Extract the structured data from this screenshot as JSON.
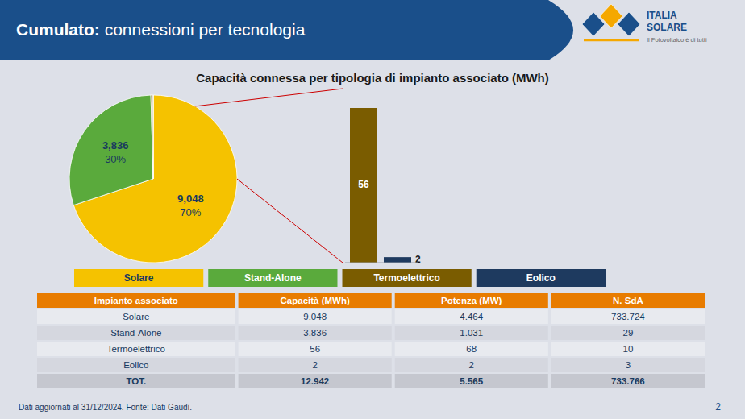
{
  "chart_data": [
    {
      "type": "pie",
      "title": "Capacità connessa per tipologia di impianto associato (MWh)",
      "categories": [
        "Solare",
        "Stand-Alone",
        "Termoelettrico",
        "Eolico"
      ],
      "values": [
        9048,
        3836,
        56,
        2
      ],
      "value_labels": [
        "9,048",
        "3,836",
        null,
        null
      ],
      "percents": [
        70,
        30,
        null,
        null
      ],
      "percent_labels": [
        "70%",
        "30%",
        null,
        null
      ],
      "colors": [
        "#f5c200",
        "#5aaa3c",
        "#7a5c00",
        "#1e3a5f"
      ],
      "legend": "bottom",
      "data_labels": true
    },
    {
      "type": "bar",
      "categories": [
        null,
        null
      ],
      "values": [
        56,
        2
      ],
      "colors": [
        "#7a5c00",
        "#1e3a5f"
      ],
      "ylim": [
        0,
        63
      ],
      "data_labels": true,
      "tick_labels": false,
      "grid": false
    },
    {
      "type": "table",
      "columns": [
        "Impianto associato",
        "Capacità (MWh)",
        "Potenza (MW)",
        "N. SdA"
      ],
      "rows": [
        [
          "Solare",
          "9.048",
          "4.464",
          "733.724"
        ],
        [
          "Stand-Alone",
          "3.836",
          "1.031",
          "29"
        ],
        [
          "Termoelettrico",
          "56",
          "68",
          "10"
        ],
        [
          "Eolico",
          "2",
          "2",
          "3"
        ],
        [
          "TOT.",
          "12.942",
          "5.565",
          "733.766"
        ]
      ]
    }
  ],
  "header_title": "Cumulato:",
  "header_subtitle": " connessioni per tecnologia",
  "logo_texts": [
    "ITALIA",
    "SOLARE",
    "Il Fotovoltaico è di tutti"
  ],
  "footer": "Dati aggiornati al 31/12/2024. Fonte: Dati Gaudì.",
  "page_number": "2"
}
